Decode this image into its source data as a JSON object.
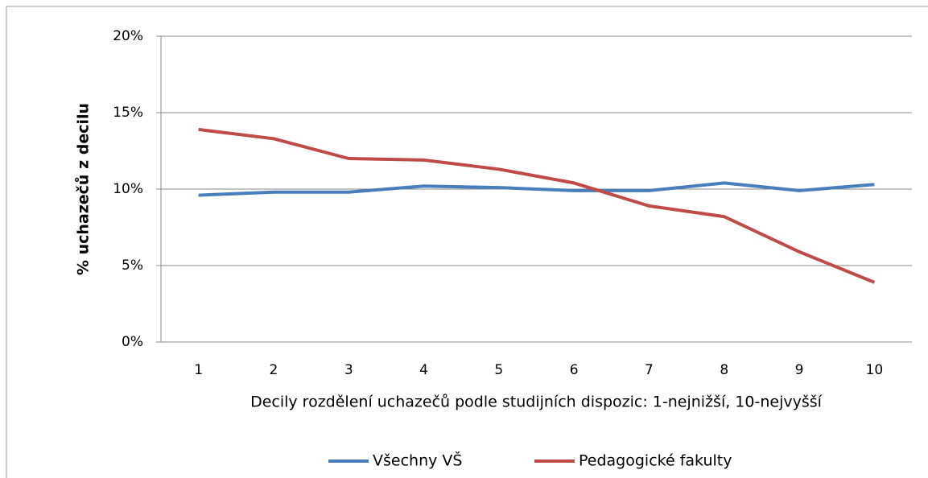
{
  "chart_data": {
    "type": "line",
    "categories": [
      "1",
      "2",
      "3",
      "4",
      "5",
      "6",
      "7",
      "8",
      "9",
      "10"
    ],
    "series": [
      {
        "name": "Všechny VŠ",
        "color": "#4a7ebb",
        "values": [
          9.6,
          9.8,
          9.8,
          10.2,
          10.1,
          9.9,
          9.9,
          10.4,
          9.9,
          10.3
        ]
      },
      {
        "name": "Pedagogické fakulty",
        "color": "#be4b48",
        "values": [
          13.9,
          13.3,
          12.0,
          11.9,
          11.3,
          10.4,
          8.9,
          8.2,
          5.9,
          3.9
        ]
      }
    ],
    "ylim": [
      0,
      20
    ],
    "yticks": [
      {
        "value": 0,
        "label": "0%"
      },
      {
        "value": 5,
        "label": "5%"
      },
      {
        "value": 10,
        "label": "10%"
      },
      {
        "value": 15,
        "label": "15%"
      },
      {
        "value": 20,
        "label": "20%"
      }
    ],
    "grid": true,
    "x_label": "Decily rozdělení uchazečů podle studijních dispozic: 1-nejnižší, 10-nejvyšší",
    "y_label": "% uchazečů z decilu",
    "legend": "bottom"
  }
}
